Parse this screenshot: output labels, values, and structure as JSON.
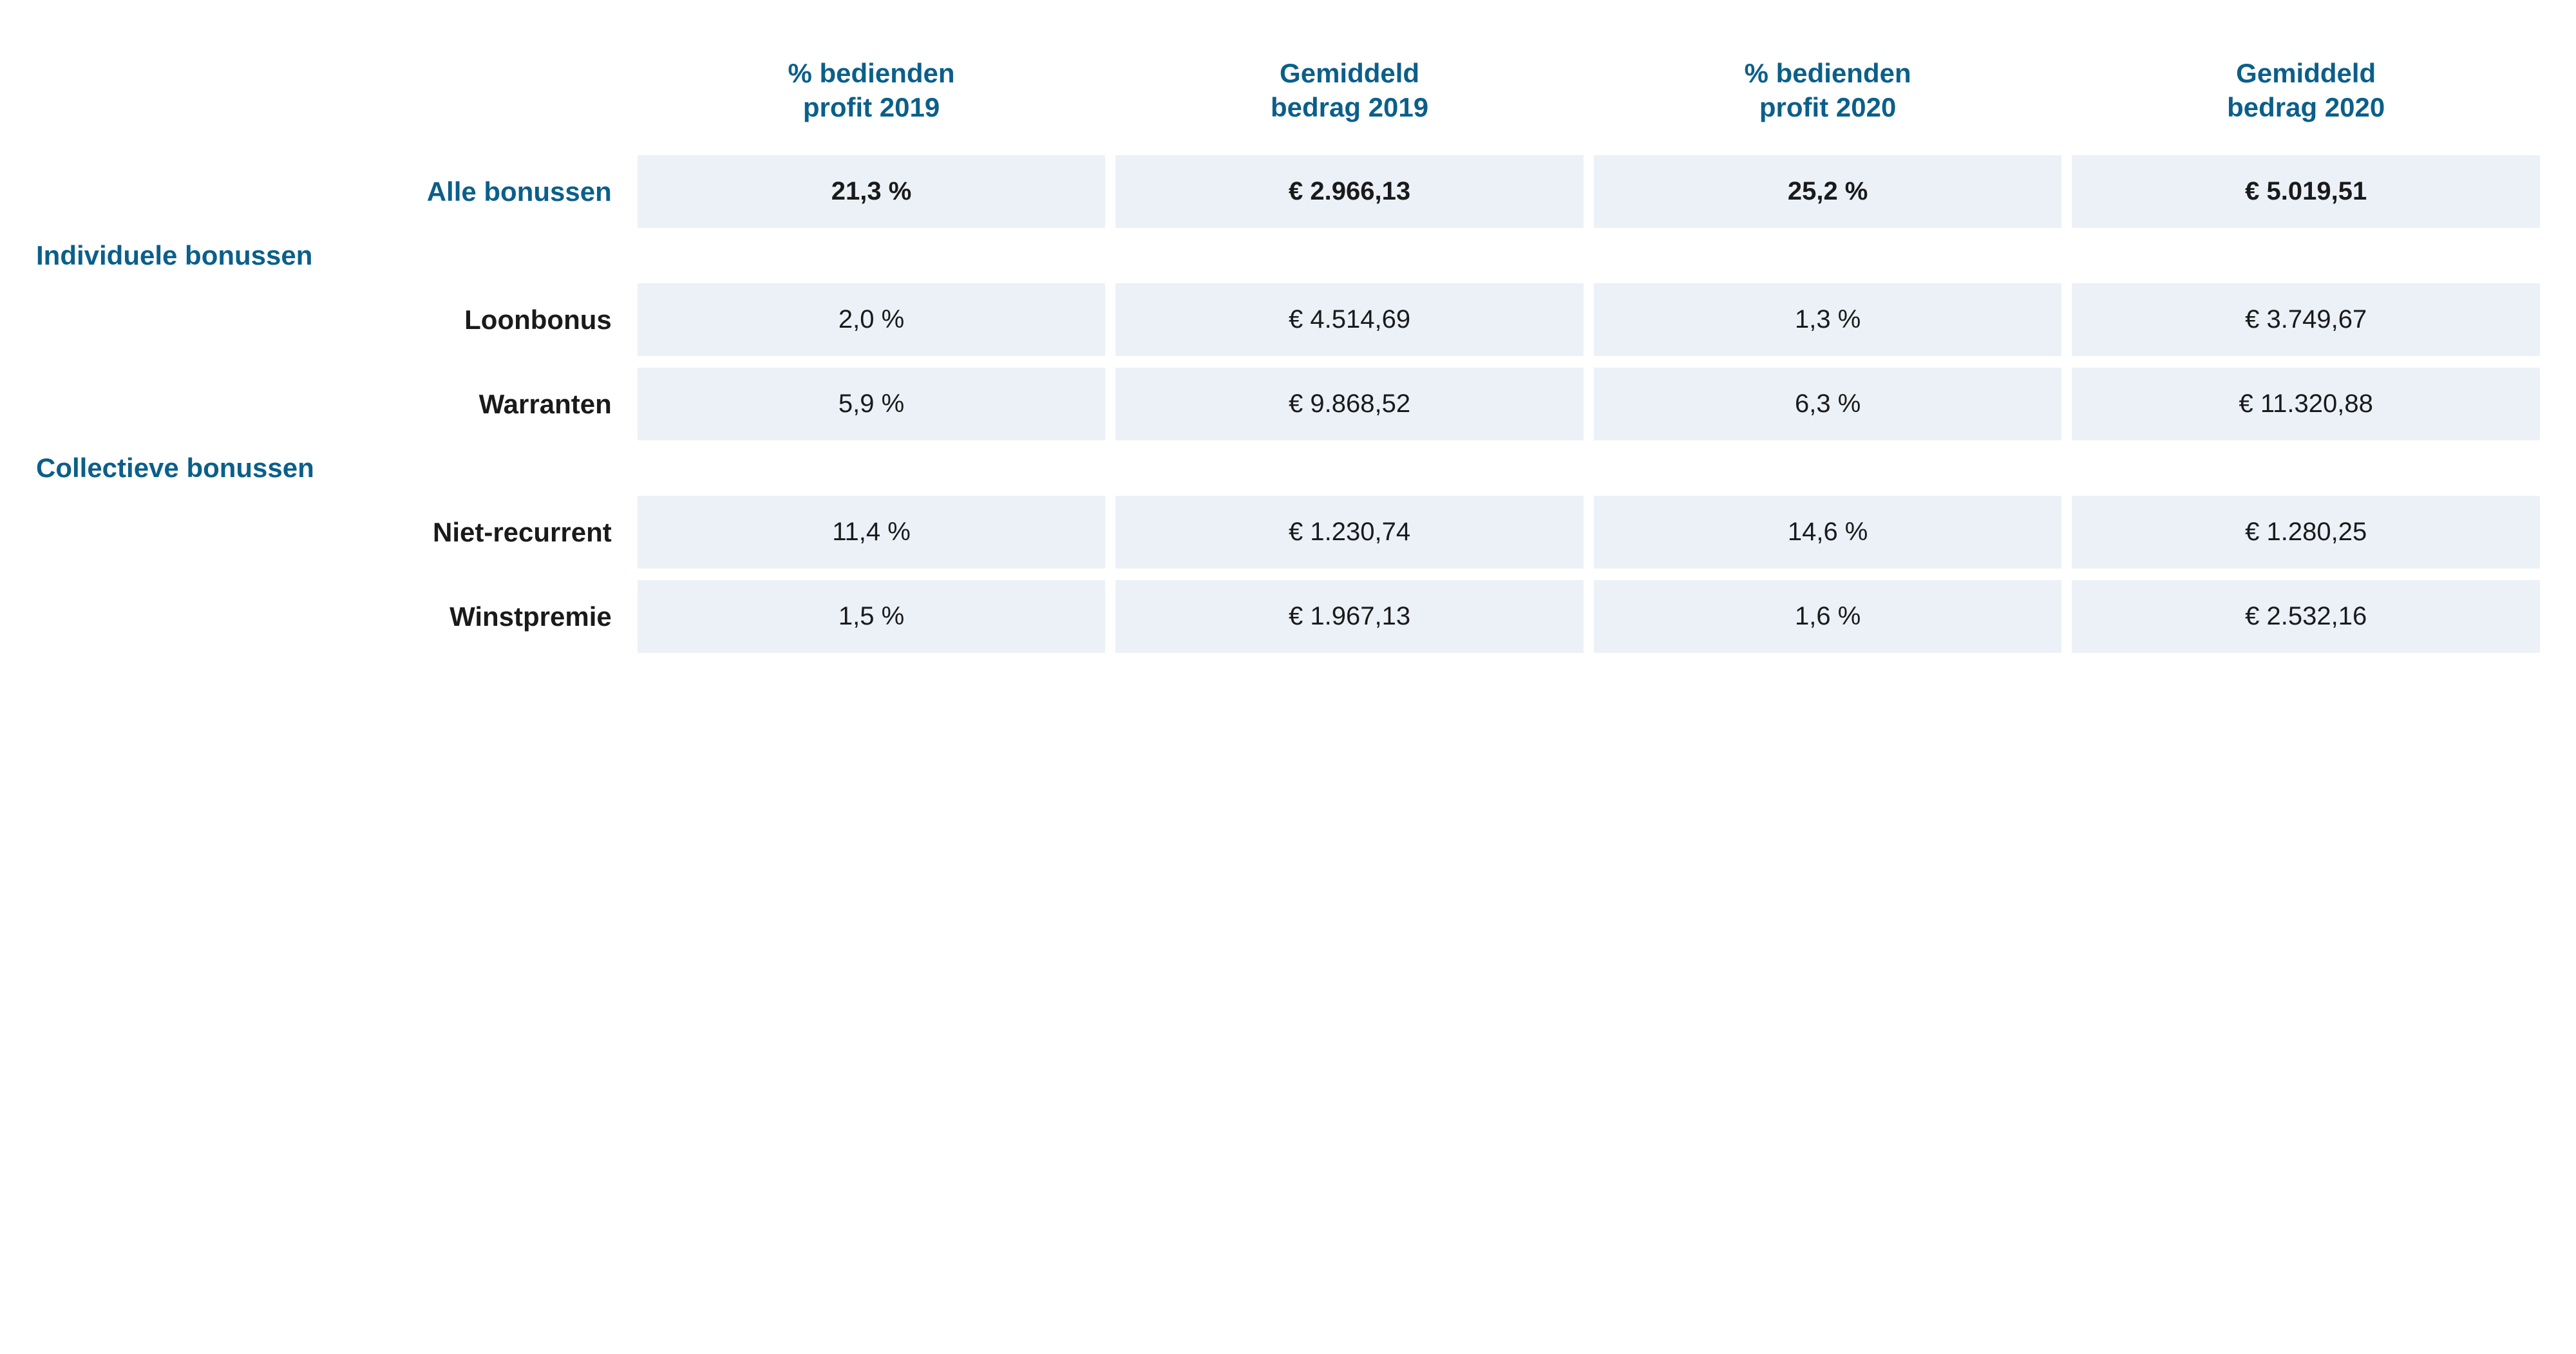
{
  "colors": {
    "header_blue": "#0b5f8a",
    "text_dark": "#1a1a1a",
    "cell_bg": "#ecf1f8",
    "page_bg": "#ffffff"
  },
  "typography": {
    "header_fontsize_pt": 32,
    "cell_fontsize_pt": 30,
    "font_family": "Arial"
  },
  "table": {
    "type": "table",
    "columns": [
      {
        "line1": "% bedienden",
        "line2": "profit 2019"
      },
      {
        "line1": "Gemiddeld",
        "line2": "bedrag 2019"
      },
      {
        "line1": "% bedienden",
        "line2": "profit 2020"
      },
      {
        "line1": "Gemiddeld",
        "line2": "bedrag 2020"
      }
    ],
    "rows": [
      {
        "kind": "total",
        "label": "Alle bonussen",
        "values": [
          "21,3 %",
          "€ 2.966,13",
          "25,2 %",
          "€ 5.019,51"
        ]
      },
      {
        "kind": "section",
        "label": "Individuele bonussen"
      },
      {
        "kind": "item",
        "label": "Loonbonus",
        "values": [
          "2,0 %",
          "€ 4.514,69",
          "1,3 %",
          "€ 3.749,67"
        ]
      },
      {
        "kind": "item",
        "label": "Warranten",
        "values": [
          "5,9 %",
          "€ 9.868,52",
          "6,3 %",
          "€ 11.320,88"
        ]
      },
      {
        "kind": "section",
        "label": "Collectieve bonussen"
      },
      {
        "kind": "item",
        "label": "Niet-recurrent",
        "values": [
          "11,4 %",
          "€ 1.230,74",
          "14,6 %",
          "€ 1.280,25"
        ]
      },
      {
        "kind": "item",
        "label": "Winstpremie",
        "values": [
          "1,5 %",
          "€ 1.967,13",
          "1,6 %",
          "€ 2.532,16"
        ]
      }
    ]
  }
}
